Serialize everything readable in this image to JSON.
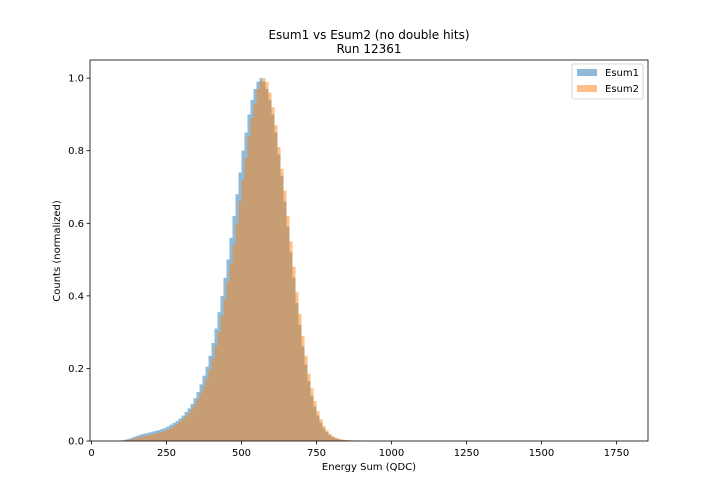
{
  "chart_data": {
    "type": "bar",
    "title": "Esum1 vs Esum2 (no double hits)",
    "subtitle": "Run 12361",
    "xlabel": "Energy Sum (QDC)",
    "ylabel": "Counts (normalized)",
    "xlim": [
      -5,
      1855
    ],
    "ylim": [
      0,
      1.05
    ],
    "xticks": [
      "0",
      "250",
      "500",
      "750",
      "1000",
      "1250",
      "1500",
      "1750"
    ],
    "yticks": [
      "0.0",
      "0.2",
      "0.4",
      "0.6",
      "0.8",
      "1.0"
    ],
    "legend_position": "top-right",
    "bin_width": 10,
    "bin_start": 100,
    "series": [
      {
        "name": "Esum1",
        "color": "#1f77b4",
        "values": [
          0.002,
          0.004,
          0.006,
          0.009,
          0.012,
          0.015,
          0.018,
          0.02,
          0.022,
          0.024,
          0.026,
          0.028,
          0.03,
          0.033,
          0.036,
          0.04,
          0.045,
          0.05,
          0.055,
          0.062,
          0.07,
          0.08,
          0.09,
          0.102,
          0.118,
          0.135,
          0.156,
          0.18,
          0.205,
          0.235,
          0.27,
          0.31,
          0.355,
          0.4,
          0.45,
          0.5,
          0.56,
          0.62,
          0.68,
          0.74,
          0.8,
          0.85,
          0.9,
          0.94,
          0.97,
          0.99,
          1.0,
          0.99,
          0.97,
          0.94,
          0.9,
          0.85,
          0.79,
          0.73,
          0.66,
          0.59,
          0.52,
          0.45,
          0.38,
          0.32,
          0.26,
          0.21,
          0.165,
          0.125,
          0.095,
          0.07,
          0.05,
          0.035,
          0.024,
          0.016,
          0.011,
          0.007,
          0.005,
          0.003,
          0.002,
          0.002,
          0.001,
          0.001,
          0.001,
          0.001
        ]
      },
      {
        "name": "Esum2",
        "color": "#ff7f0e",
        "values": [
          0.001,
          0.002,
          0.003,
          0.005,
          0.007,
          0.009,
          0.011,
          0.013,
          0.015,
          0.017,
          0.019,
          0.021,
          0.023,
          0.025,
          0.028,
          0.031,
          0.035,
          0.04,
          0.046,
          0.053,
          0.06,
          0.068,
          0.077,
          0.088,
          0.1,
          0.115,
          0.132,
          0.15,
          0.172,
          0.198,
          0.228,
          0.262,
          0.3,
          0.345,
          0.39,
          0.44,
          0.49,
          0.54,
          0.6,
          0.66,
          0.72,
          0.78,
          0.84,
          0.89,
          0.93,
          0.97,
          0.99,
          1.0,
          0.99,
          0.96,
          0.92,
          0.87,
          0.81,
          0.75,
          0.69,
          0.62,
          0.55,
          0.48,
          0.41,
          0.35,
          0.29,
          0.235,
          0.185,
          0.145,
          0.11,
          0.082,
          0.06,
          0.042,
          0.029,
          0.02,
          0.013,
          0.009,
          0.006,
          0.004,
          0.003,
          0.002,
          0.002,
          0.001,
          0.001,
          0.001
        ]
      }
    ]
  }
}
